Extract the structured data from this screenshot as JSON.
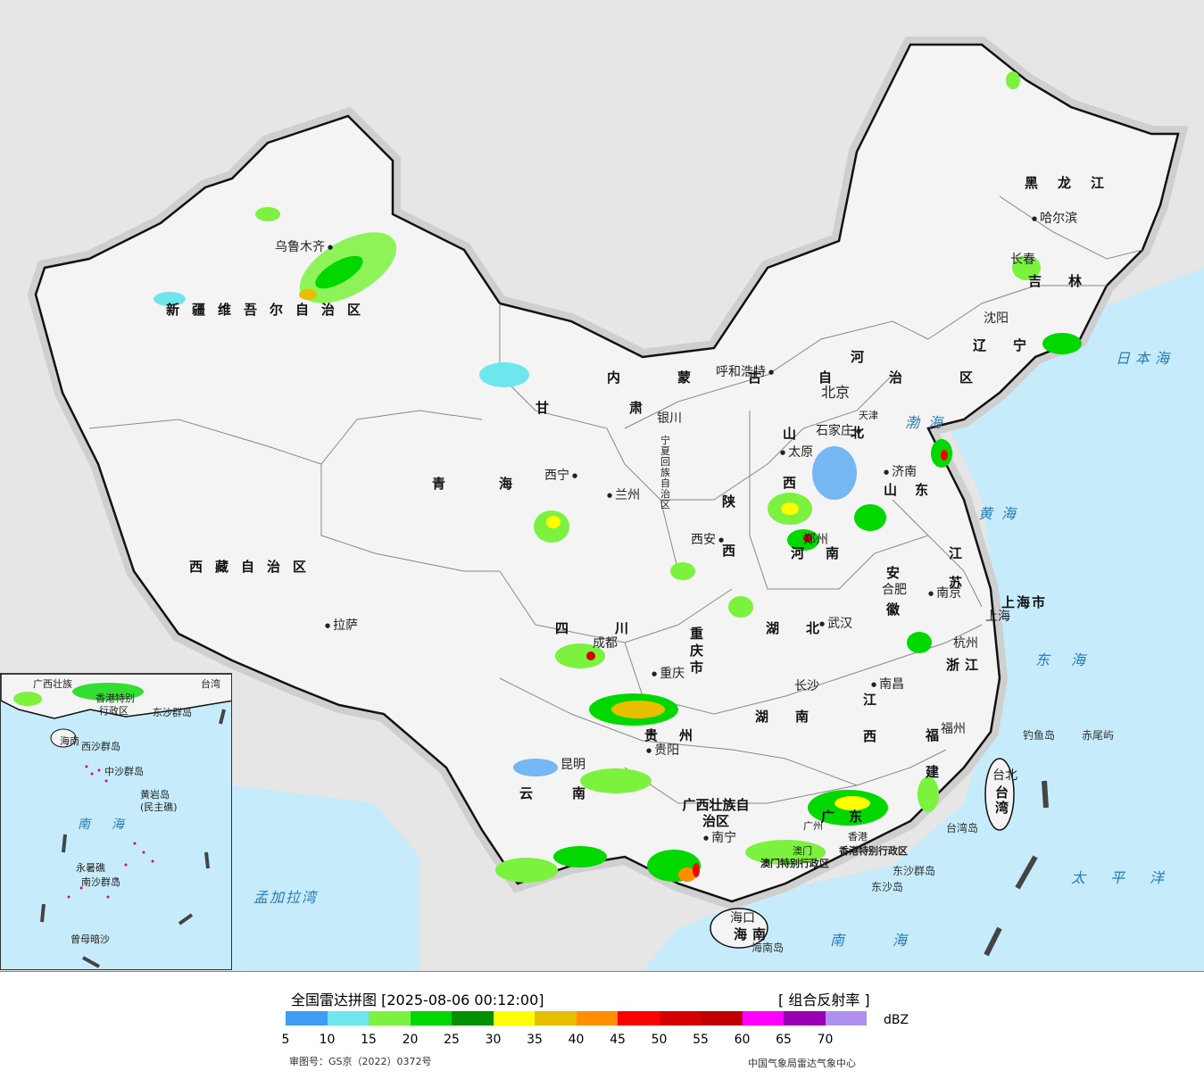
{
  "map": {
    "provinces": {
      "xinjiang": "新疆维吾尔自治区",
      "xizang": "西藏自治区",
      "qinghai": "青海",
      "gansu": "甘肃",
      "neimenggu": "内蒙古自治区",
      "heilongjiang": "黑龙江",
      "jilin": "吉林",
      "liaoning": "辽宁",
      "hebei": "河北",
      "shanxi": "山西",
      "shaanxi": "陕西",
      "shandong": "山东",
      "henan": "河南",
      "jiangsu": "江苏",
      "anhui": "安徽",
      "hubei": "湖北",
      "sichuan": "四川",
      "chongqing": "重庆市",
      "zhejiang": "浙江",
      "jiangxi": "江西",
      "hunan": "湖南",
      "guizhou": "贵州",
      "fujian": "福建",
      "yunnan": "云南",
      "guangxi": "广西壮族自治区",
      "guangdong": "广东",
      "hainan": "海南",
      "taiwan": "台湾",
      "shanghai": "上海市",
      "ningxia": "宁夏回族自治区",
      "hk": "香港特别行政区",
      "macao": "澳门特别行政区"
    },
    "cities": {
      "urumqi": "乌鲁木齐",
      "lhasa": "拉萨",
      "xining": "西宁",
      "lanzhou": "兰州",
      "yinchuan": "银川",
      "hohhot": "呼和浩特",
      "beijing": "北京",
      "tianjin": "天津",
      "shijiazhuang": "石家庄",
      "taiyuan": "太原",
      "xian": "西安",
      "zhengzhou": "郑州",
      "jinan": "济南",
      "harbin": "哈尔滨",
      "changchun": "长春",
      "shenyang": "沈阳",
      "hefei": "合肥",
      "nanjing": "南京",
      "shanghai": "上海",
      "hangzhou": "杭州",
      "wuhan": "武汉",
      "chengdu": "成都",
      "chongqing": "重庆",
      "changsha": "长沙",
      "nanchang": "南昌",
      "fuzhou": "福州",
      "guiyang": "贵阳",
      "kunming": "昆明",
      "nanning": "南宁",
      "guangzhou": "广州",
      "haikou": "海口",
      "taipei": "台北",
      "hk": "香港",
      "macao": "澳门"
    },
    "seas": {
      "bohai": "渤海",
      "yellow": "黄海",
      "east": "东海",
      "south": "南海",
      "japan": "日本海",
      "pacific": "太平洋",
      "bengal": "孟加拉湾"
    },
    "islands": {
      "diaoyu": "钓鱼岛",
      "chiwei": "赤尾屿",
      "taiwan_isl": "台湾岛",
      "dongsha_group": "东沙群岛",
      "dongsha_isl": "东沙岛",
      "hainan_isl": "海南岛"
    },
    "inset": {
      "xisha": "西沙群岛",
      "zhongsha": "中沙群岛",
      "huangyan": "黄岩岛",
      "minzhu": "(民主礁)",
      "nansha": "南沙群岛",
      "yongshu": "永暑礁",
      "zengmu": "曾母暗沙",
      "south": "南海",
      "hainan": "海南",
      "guangxi": "广西壮族",
      "taiwan": "台湾",
      "dongsha": "东沙群岛",
      "xianggang": "香港特别",
      "hk2": "行政区"
    }
  },
  "legend": {
    "title": "全国雷达拼图 [2025-08-06 00:12:00]",
    "product": "[ 组合反射率 ]",
    "unit": "dBZ",
    "ticks": [
      "5",
      "10",
      "15",
      "20",
      "25",
      "30",
      "35",
      "40",
      "45",
      "50",
      "55",
      "60",
      "65",
      "70"
    ],
    "colors": [
      "#3d9df2",
      "#6ee6ee",
      "#7bf23d",
      "#00d800",
      "#019001",
      "#ffff00",
      "#e6c000",
      "#ff8f00",
      "#ff0000",
      "#d60000",
      "#c00000",
      "#ff00ff",
      "#9a00b4",
      "#ad90f0"
    ],
    "approval": "审图号：GS京（2022）0372号",
    "agency": "中国气象局雷达气象中心"
  }
}
